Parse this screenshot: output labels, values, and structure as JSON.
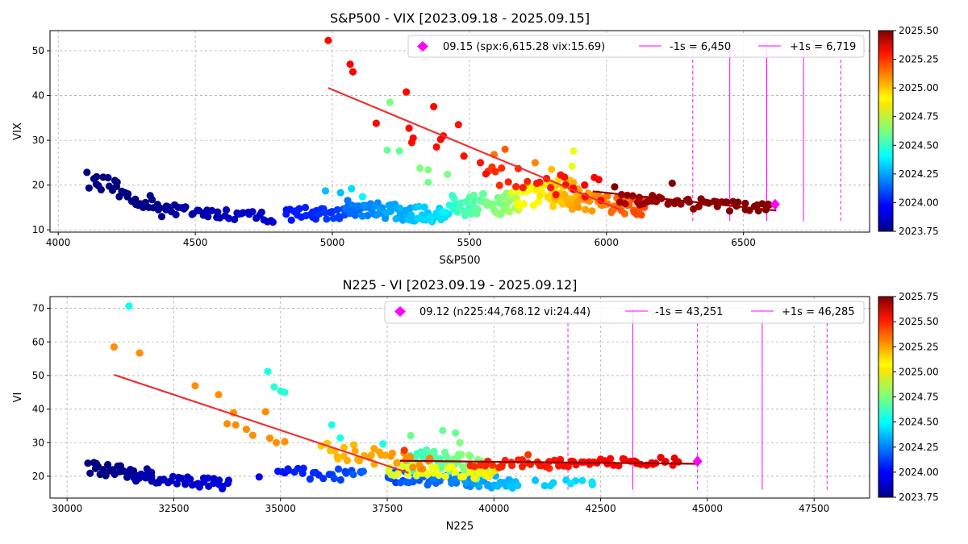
{
  "chart_data": [
    {
      "type": "scatter",
      "title": "S&P500 - VIX [2023.09.18 - 2025.09.15]",
      "xlabel": "S&P500",
      "ylabel": "VIX",
      "xlim": [
        3970,
        6960
      ],
      "ylim": [
        9.5,
        54.5
      ],
      "xticks": [
        "4000",
        "4500",
        "5000",
        "5500",
        "6000",
        "6500"
      ],
      "yticks": [
        "10",
        "20",
        "30",
        "40",
        "50"
      ],
      "grid": true,
      "legend_position": "top-right",
      "legend": {
        "current": "09.15 (spx:6,615.28 vix:15.69)",
        "minus": "-1s = 6,450",
        "plus": "+1s = 6,719"
      },
      "colorbar": {
        "ticks": [
          "2023.75",
          "2024.00",
          "2024.25",
          "2024.50",
          "2024.75",
          "2025.00",
          "2025.25",
          "2025.50"
        ],
        "range": [
          2023.75,
          2025.5
        ]
      },
      "current_point": {
        "x": 6615.28,
        "y": 15.69,
        "color": "#ff00ff"
      },
      "fit_line_1": {
        "x": [
          4985,
          6050
        ],
        "y": [
          41.7,
          14.5
        ],
        "color": "#ee3333"
      },
      "fit_line_2": {
        "x": [
          5950,
          6620
        ],
        "y": [
          18.6,
          14.3
        ],
        "color": "#8b0000"
      },
      "vlines_solid": [
        6450,
        6585,
        6719
      ],
      "vlines_dashed": [
        6315,
        6585,
        6855
      ],
      "vline_range": [
        12,
        52
      ],
      "point_groups": [
        {
          "x0": 4110,
          "x1": 4400,
          "y0": 21.5,
          "y1": 14.5,
          "t0": 2023.72,
          "t1": 2023.78,
          "n": 36,
          "jit": 2.0
        },
        {
          "x0": 4400,
          "x1": 4780,
          "y0": 14.5,
          "y1": 12.8,
          "t0": 2023.78,
          "t1": 2023.9,
          "n": 38,
          "jit": 1.2
        },
        {
          "x0": 4830,
          "x1": 5100,
          "y0": 13.5,
          "y1": 14.0,
          "t0": 2023.98,
          "t1": 2024.12,
          "n": 36,
          "jit": 1.5
        },
        {
          "x0": 5050,
          "x1": 5420,
          "y0": 15.0,
          "y1": 13.0,
          "t0": 2024.12,
          "t1": 2024.4,
          "n": 70,
          "jit": 1.8
        },
        {
          "x0": 5430,
          "x1": 5680,
          "y0": 15.5,
          "y1": 16.0,
          "t0": 2024.45,
          "t1": 2024.72,
          "n": 55,
          "jit": 2.5
        },
        {
          "x0": 5660,
          "x1": 5900,
          "y0": 17.0,
          "y1": 20.0,
          "t0": 2024.78,
          "t1": 2025.0,
          "n": 40,
          "jit": 2.5
        },
        {
          "x0": 5800,
          "x1": 6150,
          "y0": 17.0,
          "y1": 15.0,
          "t0": 2024.9,
          "t1": 2025.2,
          "n": 60,
          "jit": 2.0
        },
        {
          "x0": 5560,
          "x1": 5980,
          "y0": 22.0,
          "y1": 19.0,
          "t0": 2025.18,
          "t1": 2025.3,
          "n": 25,
          "jit": 2.5
        },
        {
          "x0": 6050,
          "x1": 6600,
          "y0": 17.0,
          "y1": 14.6,
          "t0": 2025.43,
          "t1": 2025.52,
          "n": 50,
          "jit": 1.2
        }
      ],
      "points": [
        {
          "x": 4985,
          "y": 52.3,
          "t": 2025.27
        },
        {
          "x": 5065,
          "y": 47.0,
          "t": 2025.28
        },
        {
          "x": 5075,
          "y": 45.3,
          "t": 2025.28
        },
        {
          "x": 5270,
          "y": 40.8,
          "t": 2025.27
        },
        {
          "x": 5370,
          "y": 37.5,
          "t": 2025.27
        },
        {
          "x": 5160,
          "y": 33.8,
          "t": 2025.27
        },
        {
          "x": 5280,
          "y": 32.7,
          "t": 2025.27
        },
        {
          "x": 5295,
          "y": 30.5,
          "t": 2025.27
        },
        {
          "x": 5290,
          "y": 29.5,
          "t": 2025.26
        },
        {
          "x": 5395,
          "y": 30.2,
          "t": 2025.27
        },
        {
          "x": 5405,
          "y": 31.0,
          "t": 2025.26
        },
        {
          "x": 5460,
          "y": 33.5,
          "t": 2025.25
        },
        {
          "x": 5380,
          "y": 28.5,
          "t": 2025.26
        },
        {
          "x": 5480,
          "y": 26.5,
          "t": 2025.26
        },
        {
          "x": 5540,
          "y": 25.0,
          "t": 2025.25
        },
        {
          "x": 5560,
          "y": 22.5,
          "t": 2025.26
        },
        {
          "x": 5210,
          "y": 38.5,
          "t": 2024.62
        },
        {
          "x": 5200,
          "y": 27.8,
          "t": 2024.58
        },
        {
          "x": 5245,
          "y": 27.6,
          "t": 2024.58
        },
        {
          "x": 5320,
          "y": 23.8,
          "t": 2024.62
        },
        {
          "x": 5350,
          "y": 23.4,
          "t": 2024.63
        },
        {
          "x": 5420,
          "y": 22.4,
          "t": 2024.62
        },
        {
          "x": 5350,
          "y": 20.6,
          "t": 2024.6
        },
        {
          "x": 5630,
          "y": 28.0,
          "t": 2025.12
        },
        {
          "x": 5590,
          "y": 26.8,
          "t": 2025.08
        },
        {
          "x": 5880,
          "y": 27.6,
          "t": 2024.8
        },
        {
          "x": 5875,
          "y": 24.2,
          "t": 2024.8
        },
        {
          "x": 5740,
          "y": 25.0,
          "t": 2025.05
        },
        {
          "x": 5800,
          "y": 23.5,
          "t": 2024.95
        },
        {
          "x": 4975,
          "y": 18.7,
          "t": 2024.3
        },
        {
          "x": 5030,
          "y": 18.3,
          "t": 2024.3
        },
        {
          "x": 5070,
          "y": 19.2,
          "t": 2024.35
        },
        {
          "x": 5110,
          "y": 17.4,
          "t": 2024.4
        },
        {
          "x": 6240,
          "y": 20.4,
          "t": 2025.5
        },
        {
          "x": 6030,
          "y": 19.6,
          "t": 2025.5
        }
      ]
    },
    {
      "type": "scatter",
      "title": "N225 - VI [2023.09.19 - 2025.09.12]",
      "xlabel": "N225",
      "ylabel": "VI",
      "xlim": [
        29600,
        48800
      ],
      "ylim": [
        13.5,
        73.5
      ],
      "xticks": [
        "30000",
        "32500",
        "35000",
        "37500",
        "40000",
        "42500",
        "45000",
        "47500"
      ],
      "yticks": [
        "20",
        "30",
        "40",
        "50",
        "60",
        "70"
      ],
      "grid": true,
      "legend_position": "top-right",
      "legend": {
        "current": "09.12 (n225:44,768.12 vi:24.44)",
        "minus": "-1s = 43,251",
        "plus": "+1s = 46,285"
      },
      "colorbar": {
        "ticks": [
          "2023.75",
          "2024.00",
          "2024.25",
          "2024.50",
          "2024.75",
          "2025.00",
          "2025.25",
          "2025.50",
          "2025.75"
        ],
        "range": [
          2023.75,
          2025.75
        ]
      },
      "current_point": {
        "x": 44768.12,
        "y": 24.44,
        "color": "#ff00ff"
      },
      "fit_line_1": {
        "x": [
          31100,
          38000
        ],
        "y": [
          50.2,
          21.0
        ],
        "color": "#ee3333"
      },
      "fit_line_2": {
        "x": [
          37800,
          44800
        ],
        "y": [
          24.6,
          23.7
        ],
        "color": "#8b0000"
      },
      "vlines_solid": [
        43251,
        46285
      ],
      "vlines_dashed": [
        41733,
        44768,
        47804
      ],
      "vline_range": [
        16,
        70
      ],
      "point_groups": [
        {
          "x0": 30500,
          "x1": 32000,
          "y0": 22.5,
          "y1": 20.5,
          "t0": 2023.72,
          "t1": 2023.82,
          "n": 30,
          "jit": 1.8
        },
        {
          "x0": 31600,
          "x1": 33800,
          "y0": 20.0,
          "y1": 17.5,
          "t0": 2023.82,
          "t1": 2023.95,
          "n": 40,
          "jit": 1.5
        },
        {
          "x0": 35000,
          "x1": 37000,
          "y0": 21.0,
          "y1": 20.0,
          "t0": 2024.0,
          "t1": 2024.2,
          "n": 25,
          "jit": 1.8
        },
        {
          "x0": 37500,
          "x1": 40500,
          "y0": 20.0,
          "y1": 18.0,
          "t0": 2024.1,
          "t1": 2024.4,
          "n": 60,
          "jit": 2.0
        },
        {
          "x0": 38000,
          "x1": 40000,
          "y0": 25.0,
          "y1": 22.0,
          "t0": 2024.55,
          "t1": 2024.85,
          "n": 60,
          "jit": 3.5
        },
        {
          "x0": 36000,
          "x1": 38500,
          "y0": 28.0,
          "y1": 24.0,
          "t0": 2025.1,
          "t1": 2025.25,
          "n": 35,
          "jit": 2.5
        },
        {
          "x0": 37500,
          "x1": 40000,
          "y0": 22.0,
          "y1": 21.0,
          "t0": 2024.9,
          "t1": 2025.05,
          "n": 35,
          "jit": 1.8
        },
        {
          "x0": 39500,
          "x1": 44300,
          "y0": 23.5,
          "y1": 24.5,
          "t0": 2025.4,
          "t1": 2025.55,
          "n": 60,
          "jit": 1.2
        },
        {
          "x0": 40000,
          "x1": 42300,
          "y0": 18.0,
          "y1": 18.0,
          "t0": 2024.35,
          "t1": 2024.45,
          "n": 12,
          "jit": 1.0
        }
      ],
      "points": [
        {
          "x": 31450,
          "y": 70.7,
          "t": 2024.52
        },
        {
          "x": 31100,
          "y": 58.5,
          "t": 2025.22
        },
        {
          "x": 31700,
          "y": 56.7,
          "t": 2025.22
        },
        {
          "x": 33000,
          "y": 46.9,
          "t": 2025.22
        },
        {
          "x": 33550,
          "y": 44.3,
          "t": 2025.22
        },
        {
          "x": 33900,
          "y": 38.9,
          "t": 2025.22
        },
        {
          "x": 34650,
          "y": 39.2,
          "t": 2025.22
        },
        {
          "x": 33750,
          "y": 35.6,
          "t": 2025.22
        },
        {
          "x": 33950,
          "y": 35.3,
          "t": 2025.22
        },
        {
          "x": 34200,
          "y": 34.0,
          "t": 2025.22
        },
        {
          "x": 34350,
          "y": 32.2,
          "t": 2025.22
        },
        {
          "x": 34750,
          "y": 31.3,
          "t": 2025.22
        },
        {
          "x": 34900,
          "y": 30.0,
          "t": 2025.22
        },
        {
          "x": 35100,
          "y": 30.3,
          "t": 2025.22
        },
        {
          "x": 34700,
          "y": 51.2,
          "t": 2024.55
        },
        {
          "x": 34850,
          "y": 46.6,
          "t": 2024.58
        },
        {
          "x": 35000,
          "y": 45.4,
          "t": 2024.58
        },
        {
          "x": 35100,
          "y": 45.0,
          "t": 2024.58
        },
        {
          "x": 36200,
          "y": 35.3,
          "t": 2024.55
        },
        {
          "x": 36400,
          "y": 31.4,
          "t": 2024.55
        },
        {
          "x": 37400,
          "y": 29.6,
          "t": 2024.55
        },
        {
          "x": 38800,
          "y": 33.6,
          "t": 2024.7
        },
        {
          "x": 39100,
          "y": 32.9,
          "t": 2024.7
        },
        {
          "x": 38050,
          "y": 32.1,
          "t": 2024.72
        },
        {
          "x": 39200,
          "y": 30.0,
          "t": 2024.75
        },
        {
          "x": 37900,
          "y": 27.7,
          "t": 2025.4
        },
        {
          "x": 40800,
          "y": 26.4,
          "t": 2025.4
        },
        {
          "x": 41300,
          "y": 22.3,
          "t": 2025.4
        },
        {
          "x": 34500,
          "y": 19.8,
          "t": 2023.95
        },
        {
          "x": 35100,
          "y": 21.0,
          "t": 2024.0
        },
        {
          "x": 42300,
          "y": 18.3,
          "t": 2024.45
        },
        {
          "x": 41800,
          "y": 17.8,
          "t": 2024.45
        }
      ]
    }
  ]
}
